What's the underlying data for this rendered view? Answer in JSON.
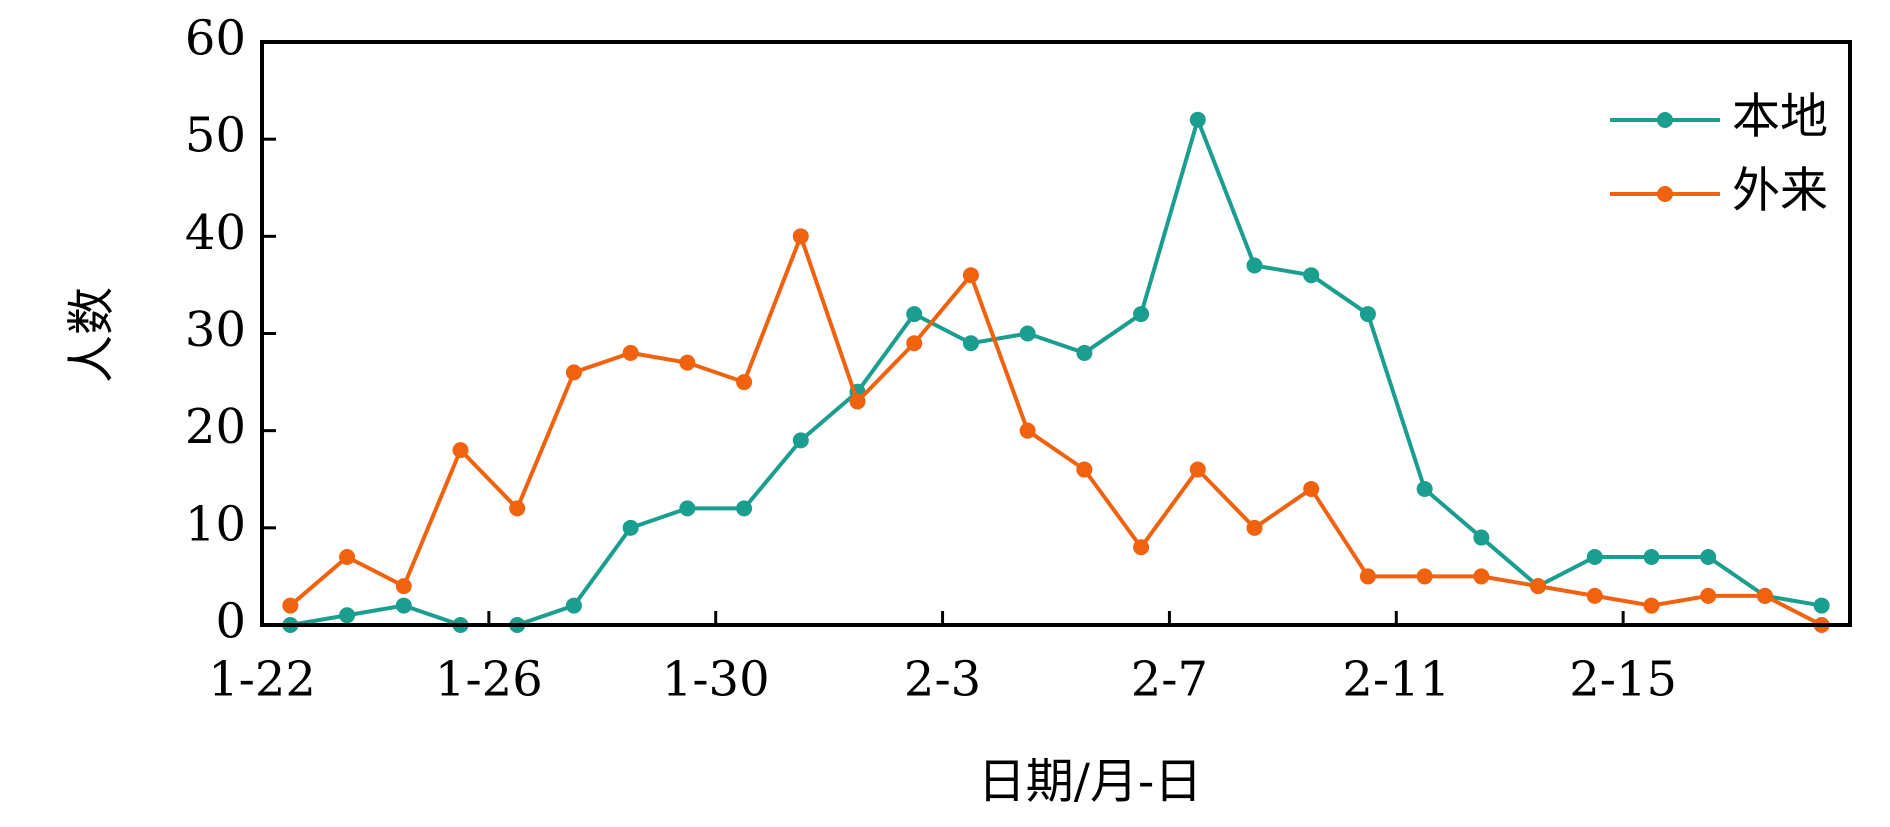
{
  "chart_data": {
    "type": "line",
    "xlabel": "日期/月-日",
    "ylabel": "人数",
    "categories": [
      "1-22",
      null,
      null,
      null,
      "1-26",
      null,
      null,
      null,
      "1-30",
      null,
      null,
      null,
      "2-3",
      null,
      null,
      null,
      "2-7",
      null,
      null,
      null,
      "2-11",
      null,
      null,
      null,
      "2-15",
      null,
      null,
      null
    ],
    "series": [
      {
        "name": "本地",
        "color": "#1a9e8f",
        "values": [
          0,
          1,
          2,
          0,
          0,
          2,
          10,
          12,
          12,
          19,
          24,
          32,
          29,
          30,
          28,
          32,
          52,
          37,
          36,
          32,
          14,
          9,
          4,
          7,
          7,
          7,
          3,
          2
        ]
      },
      {
        "name": "外来",
        "color": "#f0620e",
        "values": [
          2,
          7,
          4,
          18,
          12,
          26,
          28,
          27,
          25,
          40,
          23,
          29,
          36,
          20,
          16,
          8,
          16,
          10,
          14,
          5,
          5,
          5,
          4,
          3,
          2,
          3,
          3,
          0
        ]
      }
    ],
    "ylim": [
      0,
      60
    ],
    "yticks": [
      0,
      10,
      20,
      30,
      40,
      50,
      60
    ],
    "legend": "upper right",
    "grid": false
  }
}
